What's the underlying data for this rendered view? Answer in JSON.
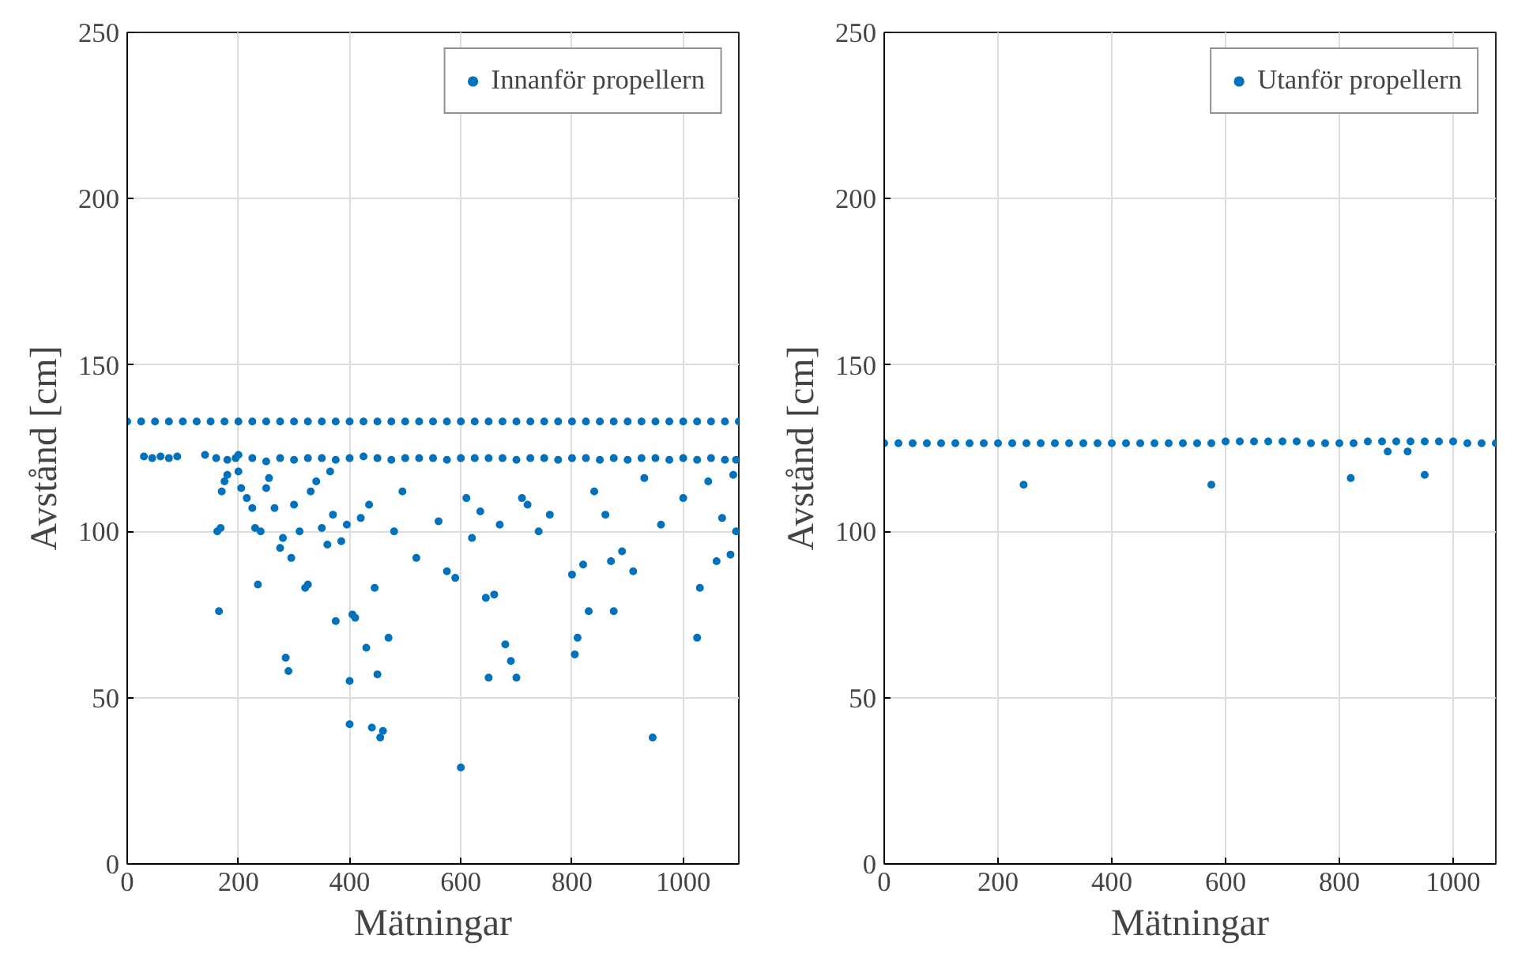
{
  "chart_data": [
    {
      "type": "scatter",
      "xlabel": "Mätningar",
      "ylabel": "Avstånd [cm]",
      "xlim": [
        0,
        1100
      ],
      "ylim": [
        0,
        250
      ],
      "xticks": [
        0,
        200,
        400,
        600,
        800,
        1000
      ],
      "yticks": [
        0,
        50,
        100,
        150,
        200,
        250
      ],
      "grid": true,
      "legend": "top right",
      "marker": "circle",
      "series": [
        {
          "name": "Innanför propellern",
          "color": "#0072bd",
          "x": [
            0,
            25,
            50,
            75,
            100,
            125,
            150,
            175,
            200,
            225,
            250,
            275,
            300,
            325,
            350,
            375,
            400,
            425,
            450,
            475,
            500,
            525,
            550,
            575,
            600,
            625,
            650,
            675,
            700,
            725,
            750,
            775,
            800,
            825,
            850,
            875,
            900,
            925,
            950,
            975,
            1000,
            1025,
            1050,
            1075,
            1100,
            30,
            45,
            60,
            75,
            90,
            140,
            160,
            180,
            200,
            225,
            250,
            275,
            300,
            325,
            350,
            375,
            400,
            425,
            450,
            475,
            500,
            525,
            550,
            575,
            600,
            625,
            650,
            675,
            700,
            725,
            750,
            775,
            800,
            825,
            850,
            875,
            900,
            925,
            950,
            975,
            1000,
            1025,
            1050,
            1075,
            1095,
            165,
            162,
            168,
            170,
            175,
            180,
            195,
            200,
            205,
            215,
            225,
            230,
            235,
            240,
            250,
            255,
            265,
            275,
            280,
            285,
            290,
            295,
            300,
            310,
            320,
            325,
            330,
            340,
            350,
            360,
            365,
            370,
            375,
            385,
            395,
            400,
            400,
            405,
            410,
            420,
            430,
            435,
            440,
            445,
            450,
            455,
            460,
            470,
            480,
            495,
            520,
            560,
            575,
            590,
            600,
            610,
            620,
            635,
            645,
            650,
            660,
            670,
            680,
            690,
            700,
            710,
            720,
            740,
            760,
            800,
            805,
            810,
            820,
            830,
            840,
            860,
            870,
            875,
            890,
            910,
            930,
            945,
            960,
            1000,
            1025,
            1030,
            1045,
            1060,
            1070,
            1085,
            1090,
            1095
          ],
          "values": [
            133,
            133,
            133,
            133,
            133,
            133,
            133,
            133,
            133,
            133,
            133,
            133,
            133,
            133,
            133,
            133,
            133,
            133,
            133,
            133,
            133,
            133,
            133,
            133,
            133,
            133,
            133,
            133,
            133,
            133,
            133,
            133,
            133,
            133,
            133,
            133,
            133,
            133,
            133,
            133,
            133,
            133,
            133,
            133,
            133,
            122.5,
            122,
            122.5,
            122,
            122.5,
            123,
            122,
            121.5,
            123,
            122,
            121,
            122,
            121.5,
            122,
            122,
            121.5,
            122,
            122.5,
            122,
            121.5,
            122,
            122,
            122,
            121.5,
            122,
            122,
            122,
            122,
            121.5,
            122,
            122,
            121.5,
            122,
            122,
            121.5,
            122,
            121.5,
            122,
            122,
            121.5,
            122,
            121.5,
            122,
            121.5,
            121.5,
            76,
            100,
            101,
            112,
            115,
            117,
            122,
            118,
            113,
            110,
            107,
            101,
            84,
            100,
            113,
            116,
            107,
            95,
            98,
            62,
            58,
            92,
            108,
            100,
            83,
            84,
            112,
            115,
            101,
            96,
            118,
            105,
            73,
            97,
            102,
            55,
            42,
            75,
            74,
            104,
            65,
            108,
            41,
            83,
            57,
            38,
            40,
            68,
            100,
            112,
            92,
            103,
            88,
            86,
            29,
            110,
            98,
            106,
            80,
            56,
            81,
            102,
            66,
            61,
            56,
            110,
            108,
            100,
            105,
            87,
            63,
            68,
            90,
            76,
            112,
            105,
            91,
            76,
            94,
            88,
            116,
            38,
            102,
            110,
            68,
            83,
            115,
            91,
            104,
            93,
            117,
            100
          ]
        }
      ]
    },
    {
      "type": "scatter",
      "xlabel": "Mätningar",
      "ylabel": "Avstånd [cm]",
      "xlim": [
        0,
        1075
      ],
      "ylim": [
        0,
        250
      ],
      "xticks": [
        0,
        200,
        400,
        600,
        800,
        1000
      ],
      "yticks": [
        0,
        50,
        100,
        150,
        200,
        250
      ],
      "grid": true,
      "legend": "top right",
      "marker": "circle",
      "series": [
        {
          "name": "Utanför propellern",
          "color": "#0072bd",
          "x": [
            0,
            25,
            50,
            75,
            100,
            125,
            150,
            175,
            200,
            225,
            250,
            275,
            300,
            325,
            350,
            375,
            400,
            425,
            450,
            475,
            500,
            525,
            550,
            575,
            600,
            625,
            650,
            675,
            700,
            725,
            750,
            775,
            800,
            825,
            850,
            875,
            900,
            925,
            950,
            975,
            1000,
            1025,
            1050,
            1075,
            245,
            575,
            820,
            885,
            920,
            950
          ],
          "values": [
            126.5,
            126.5,
            126.5,
            126.5,
            126.5,
            126.5,
            126.5,
            126.5,
            126.5,
            126.5,
            126.5,
            126.5,
            126.5,
            126.5,
            126.5,
            126.5,
            126.5,
            126.5,
            126.5,
            126.5,
            126.5,
            126.5,
            126.5,
            126.5,
            127,
            127,
            127,
            127,
            127,
            127,
            126.5,
            126.5,
            126.5,
            126.5,
            127,
            127,
            127,
            127,
            127,
            127,
            127,
            126.5,
            126.5,
            126.5,
            114,
            114,
            116,
            124,
            124,
            117
          ]
        }
      ]
    }
  ]
}
